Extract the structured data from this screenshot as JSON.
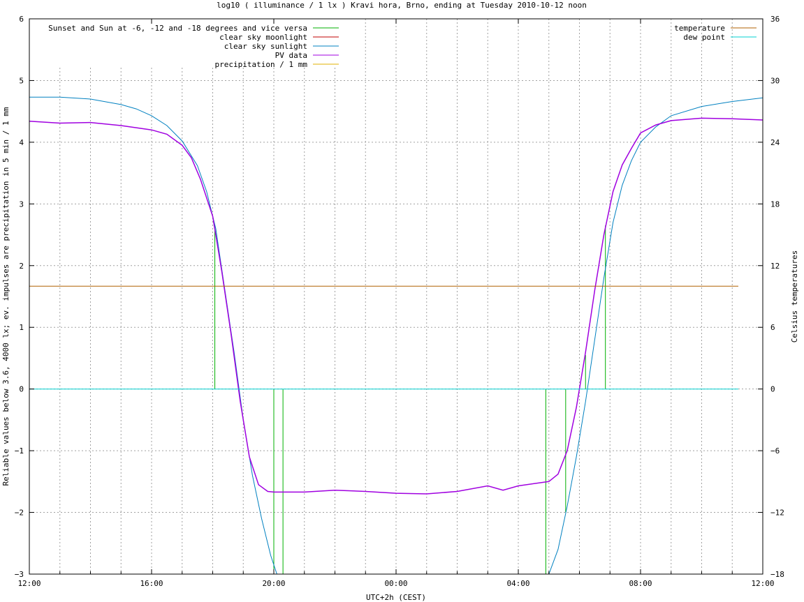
{
  "chart_data": {
    "type": "line",
    "title": "log10 ( illuminance / 1 lx ) Kravi hora, Brno, ending at Tuesday 2010-10-12 noon",
    "xlabel": "UTC+2h (CEST)",
    "ylabel": "Reliable values below 3.6, 4000 lx; ev. impulses are precipitation in 5 min / 1 mm",
    "y2label": "Celsius temperatures",
    "x_unit": "hours since 12:00",
    "xlim": [
      0,
      24
    ],
    "ylim": [
      -3,
      6
    ],
    "y2lim": [
      -18,
      36
    ],
    "grid": true,
    "x_ticks": [
      {
        "x": 0,
        "label": "12:00"
      },
      {
        "x": 4,
        "label": "16:00"
      },
      {
        "x": 8,
        "label": "20:00"
      },
      {
        "x": 12,
        "label": "00:00"
      },
      {
        "x": 16,
        "label": "04:00"
      },
      {
        "x": 20,
        "label": "08:00"
      },
      {
        "x": 24,
        "label": "12:00"
      }
    ],
    "y_ticks": [
      {
        "v": 6,
        "label": "6"
      },
      {
        "v": 5,
        "label": "5"
      },
      {
        "v": 4,
        "label": "4"
      },
      {
        "v": 3,
        "label": "3"
      },
      {
        "v": 2,
        "label": "2"
      },
      {
        "v": 1,
        "label": "1"
      },
      {
        "v": 0,
        "label": "0"
      },
      {
        "v": -1,
        "label": "−1"
      },
      {
        "v": -2,
        "label": "−2"
      },
      {
        "v": -3,
        "label": "−3"
      }
    ],
    "y2_ticks": [
      {
        "v": 36,
        "label": "36"
      },
      {
        "v": 30,
        "label": "30"
      },
      {
        "v": 24,
        "label": "24"
      },
      {
        "v": 18,
        "label": "18"
      },
      {
        "v": 12,
        "label": "12"
      },
      {
        "v": 6,
        "label": "6"
      },
      {
        "v": 0,
        "label": "0"
      },
      {
        "v": -6,
        "label": "−6"
      },
      {
        "v": -12,
        "label": "−12"
      },
      {
        "v": -18,
        "label": "−18"
      }
    ],
    "legend_left": {
      "placement": "top-left",
      "entries": [
        {
          "name": "Sunset and Sun at -6, -12 and -18 degrees and vice versa",
          "color": "#00b000"
        },
        {
          "name": "clear sky moonlight",
          "color": "#c00000"
        },
        {
          "name": "clear sky sunlight",
          "color": "#0080c0"
        },
        {
          "name": "PV data",
          "color": "#a000e0"
        },
        {
          "name": "precipitation / 1 mm",
          "color": "#e0b000"
        }
      ]
    },
    "legend_right": {
      "placement": "top-right",
      "entries": [
        {
          "name": "temperature",
          "color": "#b06000"
        },
        {
          "name": "dew point",
          "color": "#00d0d0"
        }
      ]
    },
    "series": [
      {
        "key": "sunlight",
        "axis": "y",
        "color": "#0080c0",
        "points": [
          [
            0,
            4.73
          ],
          [
            1,
            4.73
          ],
          [
            2,
            4.7
          ],
          [
            3,
            4.61
          ],
          [
            3.5,
            4.54
          ],
          [
            4,
            4.43
          ],
          [
            4.5,
            4.27
          ],
          [
            5,
            4.02
          ],
          [
            5.5,
            3.62
          ],
          [
            5.8,
            3.2
          ],
          [
            6.1,
            2.6
          ],
          [
            6.4,
            1.6
          ],
          [
            6.7,
            0.6
          ],
          [
            7.0,
            -0.5
          ],
          [
            7.3,
            -1.4
          ],
          [
            7.6,
            -2.1
          ],
          [
            7.9,
            -2.7
          ],
          [
            8.1,
            -3.0
          ]
        ]
      },
      {
        "key": "sunlight_morning",
        "axis": "y",
        "color": "#0080c0",
        "points": [
          [
            17.0,
            -3.0
          ],
          [
            17.3,
            -2.6
          ],
          [
            17.6,
            -1.9
          ],
          [
            17.9,
            -1.1
          ],
          [
            18.2,
            -0.2
          ],
          [
            18.5,
            0.8
          ],
          [
            18.8,
            1.8
          ],
          [
            19.1,
            2.7
          ],
          [
            19.4,
            3.3
          ],
          [
            19.7,
            3.7
          ],
          [
            20.0,
            4.0
          ],
          [
            20.5,
            4.25
          ],
          [
            21,
            4.43
          ],
          [
            22,
            4.58
          ],
          [
            23,
            4.66
          ],
          [
            24,
            4.72
          ]
        ]
      },
      {
        "key": "pv_data",
        "axis": "y",
        "color": "#a000e0",
        "points": [
          [
            0,
            4.34
          ],
          [
            1,
            4.31
          ],
          [
            2,
            4.32
          ],
          [
            3,
            4.27
          ],
          [
            4,
            4.2
          ],
          [
            4.5,
            4.13
          ],
          [
            5,
            3.95
          ],
          [
            5.3,
            3.75
          ],
          [
            5.6,
            3.4
          ],
          [
            6.0,
            2.8
          ],
          [
            6.3,
            1.9
          ],
          [
            6.6,
            0.9
          ],
          [
            6.9,
            -0.2
          ],
          [
            7.2,
            -1.1
          ],
          [
            7.5,
            -1.55
          ],
          [
            7.8,
            -1.66
          ],
          [
            8,
            -1.67
          ],
          [
            9,
            -1.67
          ],
          [
            10,
            -1.64
          ],
          [
            11,
            -1.66
          ],
          [
            12,
            -1.69
          ],
          [
            13,
            -1.7
          ],
          [
            14,
            -1.66
          ],
          [
            15,
            -1.57
          ],
          [
            15.5,
            -1.64
          ],
          [
            16,
            -1.57
          ],
          [
            17,
            -1.5
          ],
          [
            17.3,
            -1.38
          ],
          [
            17.6,
            -1.0
          ],
          [
            17.9,
            -0.3
          ],
          [
            18.2,
            0.6
          ],
          [
            18.5,
            1.6
          ],
          [
            18.8,
            2.5
          ],
          [
            19.1,
            3.2
          ],
          [
            19.4,
            3.63
          ],
          [
            19.7,
            3.9
          ],
          [
            20,
            4.15
          ],
          [
            20.5,
            4.28
          ],
          [
            21,
            4.35
          ],
          [
            22,
            4.39
          ],
          [
            23,
            4.38
          ],
          [
            24,
            4.36
          ]
        ]
      },
      {
        "key": "temperature",
        "axis": "y2",
        "color": "#b06000",
        "points": [
          [
            0,
            10
          ],
          [
            23.2,
            10
          ]
        ]
      },
      {
        "key": "dew_point",
        "axis": "y2",
        "color": "#00d0d0",
        "points": [
          [
            0,
            0
          ],
          [
            23.2,
            0
          ]
        ]
      }
    ],
    "sun_markers": {
      "color": "#00b000",
      "points": [
        [
          6.07,
          2.65
        ],
        [
          8.0,
          -3.0
        ],
        [
          8.3,
          -3.0
        ],
        [
          16.9,
          -3.0
        ],
        [
          17.55,
          -2.0
        ],
        [
          18.2,
          0.55
        ],
        [
          18.85,
          2.65
        ]
      ]
    }
  }
}
